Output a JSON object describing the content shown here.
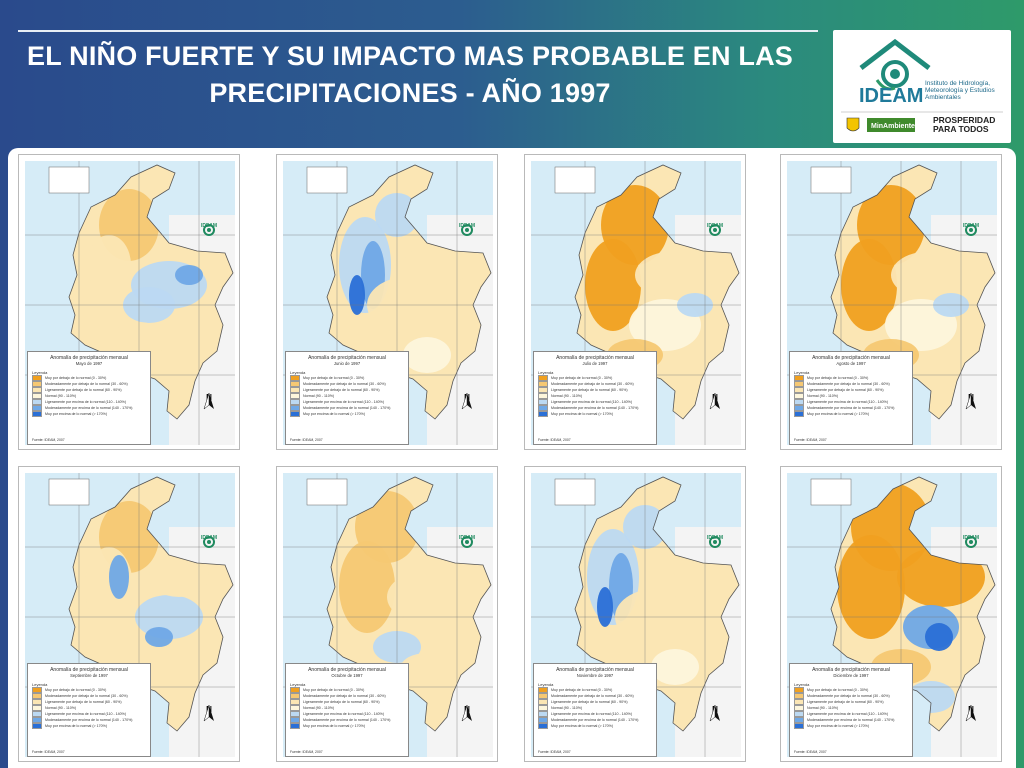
{
  "title": "EL NIÑO FUERTE Y SU IMPACTO MAS PROBABLE EN LAS PRECIPITACIONES - AÑO 1997",
  "logo": {
    "name": "IDEAM",
    "subtitle": "Instituto de Hidrología, Meteorología y Estudios Ambientales",
    "ministry": "MinAmbiente",
    "slogan": "PROSPERIDAD PARA TODOS"
  },
  "colors": {
    "deficit_strong": "#f0a020",
    "deficit_moderate": "#f6c873",
    "deficit_slight": "#fbe6b4",
    "normal": "#fdf6dc",
    "excess_slight": "#bcd9f2",
    "excess_moderate": "#6fa8e6",
    "excess_strong": "#2a6fd6",
    "sea": "#d6ecf7"
  },
  "legend": {
    "heading": "Anomalía de precipitación mensual",
    "leyenda": "Leyenda",
    "categories": [
      {
        "label": "Muy por debajo de lo normal (0 - 30%)",
        "color_key": "deficit_strong"
      },
      {
        "label": "Moderadamente por debajo de lo normal (30 - 60%)",
        "color_key": "deficit_moderate"
      },
      {
        "label": "Ligeramente por debajo de lo normal (60 - 90%)",
        "color_key": "deficit_slight"
      },
      {
        "label": "Normal (90 - 110%)",
        "color_key": "normal"
      },
      {
        "label": "Ligeramente por encima de lo normal (110 - 140%)",
        "color_key": "excess_slight"
      },
      {
        "label": "Moderadamente por encima de lo normal (140 - 170%)",
        "color_key": "excess_moderate"
      },
      {
        "label": "Muy por encima de lo normal (> 170%)",
        "color_key": "excess_strong"
      }
    ],
    "source": "Fuente: IDEAM, 2007"
  },
  "north_label": "N",
  "maps": [
    {
      "month": "Mayo de 1997",
      "regime": "mixed-wet-east"
    },
    {
      "month": "Junio de 1997",
      "regime": "wet-west"
    },
    {
      "month": "Julio de 1997",
      "regime": "dry"
    },
    {
      "month": "Agosto de 1997",
      "regime": "dry"
    },
    {
      "month": "Septiembre de 1997",
      "regime": "mixed"
    },
    {
      "month": "Octubre de 1997",
      "regime": "dry-mild"
    },
    {
      "month": "Noviembre de 1997",
      "regime": "wet-west"
    },
    {
      "month": "Diciembre de 1997",
      "regime": "very-dry"
    }
  ]
}
